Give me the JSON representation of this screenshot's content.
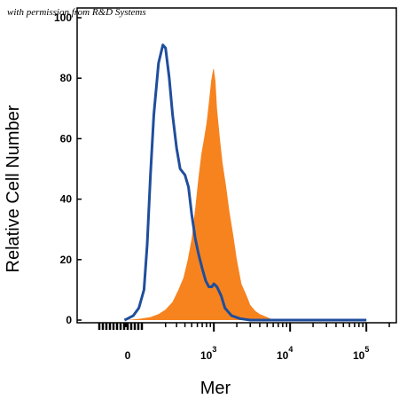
{
  "watermark": "with permission from R&D Systems",
  "chart_data": {
    "type": "area",
    "title": "",
    "xlabel": "Mer",
    "ylabel": "Relative Cell Number",
    "x_scale": "biexponential",
    "ylim": [
      0,
      100
    ],
    "grid": false,
    "y_ticks": [
      "0",
      "20",
      "40",
      "60",
      "80",
      "100"
    ],
    "x_ticks": [
      {
        "base": "0",
        "exp": ""
      },
      {
        "base": "10",
        "exp": "3"
      },
      {
        "base": "10",
        "exp": "4"
      },
      {
        "base": "10",
        "exp": "5"
      }
    ],
    "series": [
      {
        "style": "line",
        "color": "#1f4e9c",
        "x": [
          -100,
          0,
          20,
          40,
          60,
          80,
          100,
          120,
          150,
          180,
          200,
          230,
          260,
          300,
          340,
          400,
          450,
          500,
          560,
          620,
          700,
          780,
          860,
          940,
          1000,
          1100,
          1250,
          1400,
          1700,
          2200,
          3000,
          5000,
          100000
        ],
        "y": [
          0,
          0.5,
          1.5,
          4,
          10,
          25,
          48,
          68,
          85,
          91,
          90,
          80,
          68,
          57,
          50,
          48,
          44,
          35,
          27,
          22,
          17,
          13,
          11,
          11,
          12,
          11,
          8,
          4,
          1.5,
          0.5,
          0,
          0,
          0
        ]
      },
      {
        "style": "fill",
        "color": "#f7831f",
        "x": [
          -100,
          0,
          50,
          100,
          150,
          200,
          260,
          320,
          380,
          440,
          500,
          560,
          620,
          680,
          740,
          800,
          860,
          920,
          980,
          1000,
          1050,
          1100,
          1200,
          1300,
          1450,
          1600,
          1800,
          2000,
          2300,
          2700,
          3000,
          3500,
          4000,
          5000,
          6000,
          100000
        ],
        "y": [
          0,
          0,
          0.5,
          1,
          2,
          3.5,
          6,
          10,
          14,
          20,
          27,
          37,
          47,
          55,
          60,
          65,
          72,
          79,
          83,
          83,
          79,
          70,
          60,
          52,
          44,
          36,
          28,
          20,
          12,
          8,
          5,
          3,
          2,
          1,
          0,
          0
        ]
      }
    ]
  }
}
